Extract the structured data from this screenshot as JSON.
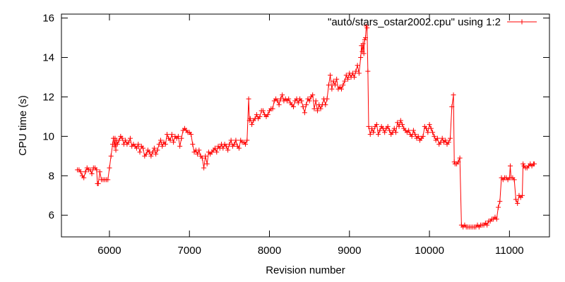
{
  "chart_data": {
    "type": "line",
    "xlabel": "Revision number",
    "ylabel": "CPU time (s)",
    "xlim": [
      5400,
      11500
    ],
    "ylim": [
      4.9,
      16.2
    ],
    "xticks": [
      6000,
      7000,
      8000,
      9000,
      10000,
      11000
    ],
    "yticks": [
      6,
      8,
      10,
      12,
      14,
      16
    ],
    "grid": false,
    "legend_position": "top-right",
    "series": [
      {
        "name": "\"auto/stars_ostar2002.cpu\" using 1:2",
        "color": "#ff0000",
        "marker": "plus",
        "points": [
          [
            5600,
            8.3
          ],
          [
            5620,
            8.3
          ],
          [
            5640,
            8.2
          ],
          [
            5660,
            8.0
          ],
          [
            5680,
            7.9
          ],
          [
            5700,
            8.2
          ],
          [
            5720,
            8.4
          ],
          [
            5740,
            8.3
          ],
          [
            5760,
            8.3
          ],
          [
            5780,
            8.1
          ],
          [
            5800,
            8.4
          ],
          [
            5820,
            8.4
          ],
          [
            5840,
            8.3
          ],
          [
            5850,
            7.6
          ],
          [
            5860,
            7.6
          ],
          [
            5880,
            8.2
          ],
          [
            5900,
            7.8
          ],
          [
            5920,
            7.8
          ],
          [
            5940,
            7.8
          ],
          [
            5960,
            7.8
          ],
          [
            5980,
            7.8
          ],
          [
            6000,
            8.4
          ],
          [
            6020,
            9.0
          ],
          [
            6040,
            9.6
          ],
          [
            6050,
            9.9
          ],
          [
            6060,
            9.5
          ],
          [
            6070,
            9.9
          ],
          [
            6080,
            9.3
          ],
          [
            6090,
            9.8
          ],
          [
            6100,
            9.6
          ],
          [
            6120,
            9.8
          ],
          [
            6140,
            10.0
          ],
          [
            6160,
            9.9
          ],
          [
            6180,
            9.6
          ],
          [
            6200,
            9.8
          ],
          [
            6220,
            9.6
          ],
          [
            6240,
            9.7
          ],
          [
            6260,
            9.9
          ],
          [
            6280,
            9.5
          ],
          [
            6300,
            9.6
          ],
          [
            6320,
            9.5
          ],
          [
            6340,
            9.4
          ],
          [
            6360,
            9.6
          ],
          [
            6380,
            9.2
          ],
          [
            6400,
            9.5
          ],
          [
            6420,
            9.4
          ],
          [
            6440,
            9.0
          ],
          [
            6460,
            9.1
          ],
          [
            6480,
            9.3
          ],
          [
            6500,
            9.2
          ],
          [
            6520,
            9.0
          ],
          [
            6540,
            9.2
          ],
          [
            6560,
            9.4
          ],
          [
            6580,
            9.1
          ],
          [
            6600,
            9.3
          ],
          [
            6620,
            9.6
          ],
          [
            6640,
            9.8
          ],
          [
            6660,
            9.5
          ],
          [
            6680,
            9.7
          ],
          [
            6700,
            9.6
          ],
          [
            6720,
            10.1
          ],
          [
            6740,
            9.9
          ],
          [
            6760,
            9.8
          ],
          [
            6780,
            10.1
          ],
          [
            6800,
            9.7
          ],
          [
            6820,
            10.0
          ],
          [
            6840,
            9.9
          ],
          [
            6860,
            10.0
          ],
          [
            6880,
            9.5
          ],
          [
            6900,
            9.9
          ],
          [
            6920,
            10.3
          ],
          [
            6940,
            10.4
          ],
          [
            6960,
            10.3
          ],
          [
            6980,
            10.2
          ],
          [
            7000,
            10.2
          ],
          [
            7020,
            10.1
          ],
          [
            7040,
            9.6
          ],
          [
            7060,
            9.2
          ],
          [
            7080,
            9.3
          ],
          [
            7100,
            9.1
          ],
          [
            7120,
            9.3
          ],
          [
            7140,
            9.0
          ],
          [
            7160,
            8.9
          ],
          [
            7180,
            8.4
          ],
          [
            7200,
            9.0
          ],
          [
            7220,
            8.6
          ],
          [
            7240,
            9.2
          ],
          [
            7260,
            9.1
          ],
          [
            7280,
            9.2
          ],
          [
            7300,
            9.3
          ],
          [
            7320,
            9.4
          ],
          [
            7340,
            9.2
          ],
          [
            7360,
            9.5
          ],
          [
            7380,
            9.4
          ],
          [
            7400,
            9.6
          ],
          [
            7420,
            9.4
          ],
          [
            7440,
            9.6
          ],
          [
            7460,
            9.5
          ],
          [
            7480,
            9.3
          ],
          [
            7500,
            9.6
          ],
          [
            7520,
            9.8
          ],
          [
            7540,
            9.5
          ],
          [
            7560,
            9.6
          ],
          [
            7580,
            9.8
          ],
          [
            7600,
            9.5
          ],
          [
            7620,
            9.4
          ],
          [
            7640,
            9.8
          ],
          [
            7660,
            9.7
          ],
          [
            7680,
            9.7
          ],
          [
            7700,
            9.6
          ],
          [
            7720,
            9.8
          ],
          [
            7740,
            11.9
          ],
          [
            7750,
            10.8
          ],
          [
            7760,
            10.9
          ],
          [
            7780,
            10.6
          ],
          [
            7800,
            10.8
          ],
          [
            7820,
            10.9
          ],
          [
            7840,
            11.1
          ],
          [
            7860,
            10.9
          ],
          [
            7880,
            11.0
          ],
          [
            7900,
            11.3
          ],
          [
            7920,
            11.3
          ],
          [
            7940,
            11.1
          ],
          [
            7960,
            11.0
          ],
          [
            7980,
            11.1
          ],
          [
            8000,
            11.3
          ],
          [
            8020,
            11.4
          ],
          [
            8040,
            11.4
          ],
          [
            8060,
            11.8
          ],
          [
            8080,
            11.9
          ],
          [
            8100,
            11.8
          ],
          [
            8120,
            11.6
          ],
          [
            8140,
            11.9
          ],
          [
            8160,
            12.1
          ],
          [
            8180,
            11.8
          ],
          [
            8200,
            11.9
          ],
          [
            8220,
            11.8
          ],
          [
            8240,
            11.9
          ],
          [
            8260,
            11.7
          ],
          [
            8280,
            11.6
          ],
          [
            8300,
            11.5
          ],
          [
            8320,
            11.8
          ],
          [
            8340,
            11.9
          ],
          [
            8360,
            11.7
          ],
          [
            8380,
            11.9
          ],
          [
            8400,
            11.8
          ],
          [
            8420,
            11.5
          ],
          [
            8440,
            11.2
          ],
          [
            8460,
            11.6
          ],
          [
            8480,
            11.9
          ],
          [
            8500,
            11.8
          ],
          [
            8520,
            12.0
          ],
          [
            8540,
            12.1
          ],
          [
            8560,
            11.4
          ],
          [
            8580,
            11.8
          ],
          [
            8600,
            11.3
          ],
          [
            8620,
            11.6
          ],
          [
            8640,
            11.4
          ],
          [
            8660,
            11.6
          ],
          [
            8680,
            11.9
          ],
          [
            8700,
            11.6
          ],
          [
            8720,
            11.9
          ],
          [
            8740,
            12.6
          ],
          [
            8760,
            13.1
          ],
          [
            8780,
            12.4
          ],
          [
            8800,
            12.8
          ],
          [
            8820,
            12.6
          ],
          [
            8840,
            12.9
          ],
          [
            8860,
            12.4
          ],
          [
            8880,
            12.5
          ],
          [
            8900,
            12.4
          ],
          [
            8920,
            12.6
          ],
          [
            8940,
            12.8
          ],
          [
            8960,
            13.1
          ],
          [
            8980,
            12.9
          ],
          [
            9000,
            13.2
          ],
          [
            9020,
            13.0
          ],
          [
            9040,
            13.2
          ],
          [
            9060,
            13.0
          ],
          [
            9080,
            13.3
          ],
          [
            9100,
            13.6
          ],
          [
            9120,
            13.2
          ],
          [
            9140,
            14.0
          ],
          [
            9150,
            14.6
          ],
          [
            9160,
            14.3
          ],
          [
            9170,
            14.7
          ],
          [
            9180,
            14.2
          ],
          [
            9190,
            14.9
          ],
          [
            9200,
            15.0
          ],
          [
            9210,
            15.6
          ],
          [
            9220,
            15.5
          ],
          [
            9230,
            13.3
          ],
          [
            9240,
            10.5
          ],
          [
            9260,
            10.1
          ],
          [
            9280,
            10.4
          ],
          [
            9300,
            10.2
          ],
          [
            9320,
            10.5
          ],
          [
            9340,
            10.6
          ],
          [
            9360,
            10.1
          ],
          [
            9380,
            10.3
          ],
          [
            9400,
            10.5
          ],
          [
            9420,
            10.4
          ],
          [
            9440,
            10.2
          ],
          [
            9460,
            10.4
          ],
          [
            9480,
            10.5
          ],
          [
            9500,
            10.3
          ],
          [
            9520,
            10.1
          ],
          [
            9540,
            10.2
          ],
          [
            9560,
            10.4
          ],
          [
            9580,
            10.2
          ],
          [
            9600,
            10.7
          ],
          [
            9620,
            10.5
          ],
          [
            9640,
            10.8
          ],
          [
            9660,
            10.6
          ],
          [
            9680,
            10.4
          ],
          [
            9700,
            10.3
          ],
          [
            9720,
            10.2
          ],
          [
            9740,
            10.3
          ],
          [
            9760,
            10.1
          ],
          [
            9780,
            10.0
          ],
          [
            9800,
            10.3
          ],
          [
            9820,
            10.1
          ],
          [
            9840,
            9.9
          ],
          [
            9860,
            10.0
          ],
          [
            9880,
            9.8
          ],
          [
            9900,
            9.9
          ],
          [
            9920,
            10.0
          ],
          [
            9940,
            10.5
          ],
          [
            9960,
            10.4
          ],
          [
            9980,
            10.2
          ],
          [
            10000,
            10.6
          ],
          [
            10020,
            10.4
          ],
          [
            10040,
            10.2
          ],
          [
            10060,
            10.0
          ],
          [
            10080,
            9.8
          ],
          [
            10100,
            9.9
          ],
          [
            10120,
            9.6
          ],
          [
            10140,
            9.7
          ],
          [
            10160,
            9.9
          ],
          [
            10180,
            9.7
          ],
          [
            10200,
            9.8
          ],
          [
            10220,
            9.6
          ],
          [
            10240,
            9.7
          ],
          [
            10260,
            9.9
          ],
          [
            10280,
            11.5
          ],
          [
            10300,
            12.1
          ],
          [
            10310,
            8.7
          ],
          [
            10320,
            8.6
          ],
          [
            10340,
            8.6
          ],
          [
            10360,
            8.7
          ],
          [
            10380,
            8.9
          ],
          [
            10400,
            5.5
          ],
          [
            10420,
            5.4
          ],
          [
            10440,
            5.5
          ],
          [
            10460,
            5.4
          ],
          [
            10480,
            5.4
          ],
          [
            10500,
            5.4
          ],
          [
            10520,
            5.4
          ],
          [
            10540,
            5.4
          ],
          [
            10560,
            5.4
          ],
          [
            10580,
            5.4
          ],
          [
            10600,
            5.5
          ],
          [
            10620,
            5.4
          ],
          [
            10640,
            5.5
          ],
          [
            10660,
            5.5
          ],
          [
            10680,
            5.5
          ],
          [
            10700,
            5.6
          ],
          [
            10720,
            5.5
          ],
          [
            10740,
            5.7
          ],
          [
            10760,
            5.7
          ],
          [
            10780,
            5.8
          ],
          [
            10800,
            5.8
          ],
          [
            10820,
            5.9
          ],
          [
            10840,
            5.8
          ],
          [
            10860,
            6.4
          ],
          [
            10880,
            6.7
          ],
          [
            10900,
            7.9
          ],
          [
            10920,
            7.8
          ],
          [
            10940,
            7.9
          ],
          [
            10960,
            7.9
          ],
          [
            10980,
            7.8
          ],
          [
            11000,
            7.9
          ],
          [
            11010,
            8.5
          ],
          [
            11020,
            7.9
          ],
          [
            11040,
            7.9
          ],
          [
            11060,
            7.8
          ],
          [
            11080,
            6.8
          ],
          [
            11100,
            6.6
          ],
          [
            11120,
            7.0
          ],
          [
            11140,
            6.9
          ],
          [
            11160,
            7.0
          ],
          [
            11170,
            8.6
          ],
          [
            11180,
            8.5
          ],
          [
            11200,
            8.4
          ],
          [
            11220,
            8.4
          ],
          [
            11240,
            8.5
          ],
          [
            11260,
            8.6
          ],
          [
            11280,
            8.5
          ],
          [
            11300,
            8.6
          ],
          [
            11310,
            8.6
          ]
        ]
      }
    ]
  }
}
